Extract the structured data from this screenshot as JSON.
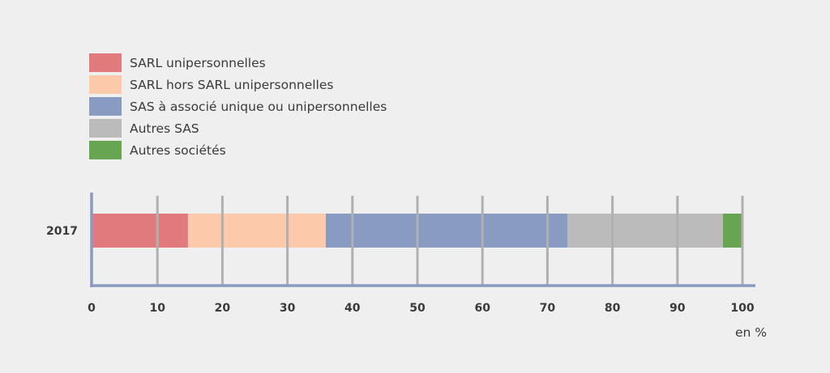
{
  "chart_data": {
    "type": "bar",
    "orientation": "horizontal",
    "stacked": true,
    "categories": [
      "2017"
    ],
    "series": [
      {
        "name": "SARL unipersonnelles",
        "values": [
          14.7
        ],
        "color": "#e07a7c"
      },
      {
        "name": "SARL hors SARL unipersonnelles",
        "values": [
          21.2
        ],
        "color": "#fcc9ab"
      },
      {
        "name": "SAS à associé unique ou unipersonnelles",
        "values": [
          37.2
        ],
        "color": "#8a9bc1"
      },
      {
        "name": "Autres SAS",
        "values": [
          23.9
        ],
        "color": "#bbbbbb"
      },
      {
        "name": "Autres sociétés",
        "values": [
          3.0
        ],
        "color": "#67a550"
      }
    ],
    "xlim": [
      0,
      100
    ],
    "xticks": [
      0,
      10,
      20,
      30,
      40,
      50,
      60,
      70,
      80,
      90,
      100
    ],
    "xunit": "en %",
    "grid": true,
    "legend_position": "top-left",
    "axis_color": "#8a9bc1",
    "grid_color": "#b0b0b0"
  }
}
